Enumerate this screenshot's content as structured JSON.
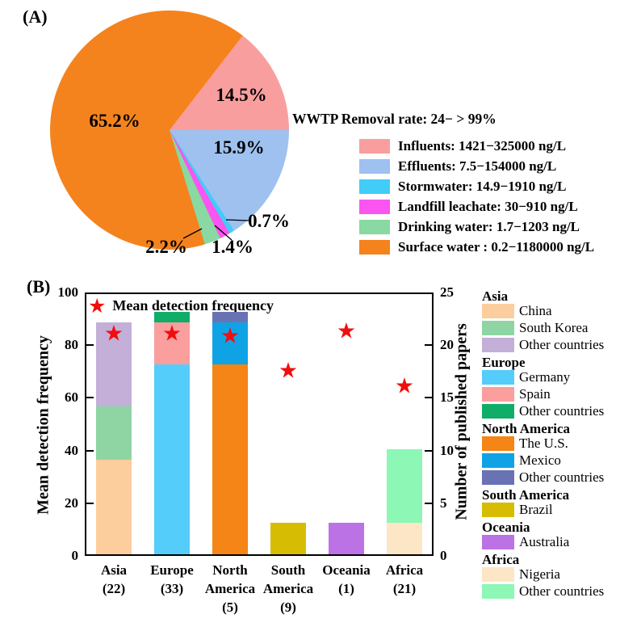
{
  "figure": {
    "panel_a_label": "(A)",
    "panel_b_label": "(B)",
    "background": "#FFFFFF"
  },
  "chart_data": [
    {
      "type": "pie",
      "panel": "A",
      "annotation": "WWTP Removal rate: 24− > 99%",
      "legend_position": "right",
      "start_angle": "pie starts at east, drawn clockwise",
      "draw_order": [
        "Effluents",
        "Stormwater",
        "Landfill leachate",
        "Drinking water",
        "Surface water",
        "Influents"
      ],
      "slices": [
        {
          "name": "Influents",
          "pct": 14.5,
          "pct_label": "14.5%",
          "legend": "Influents: 1421−325000 ng/L",
          "color": "#F99E9E"
        },
        {
          "name": "Effluents",
          "pct": 15.9,
          "pct_label": "15.9%",
          "legend": "Effluents: 7.5−154000 ng/L",
          "color": "#9EC1EF"
        },
        {
          "name": "Stormwater",
          "pct": 0.7,
          "pct_label": "0.7%",
          "legend": "Stormwater: 14.9−1910 ng/L",
          "color": "#41CDF7"
        },
        {
          "name": "Landfill leachate",
          "pct": 1.4,
          "pct_label": "1.4%",
          "legend": "Landfill leachate: 30−910 ng/L",
          "color": "#FA55F0"
        },
        {
          "name": "Drinking water",
          "pct": 2.2,
          "pct_label": "2.2%",
          "legend": "Drinking water: 1.7−1203 ng/L",
          "color": "#8AD8A2"
        },
        {
          "name": "Surface water",
          "pct": 65.2,
          "pct_label": "65.2%",
          "legend": "Surface water : 0.2−1180000 ng/L",
          "color": "#F5831D"
        }
      ]
    },
    {
      "type": "bar",
      "panel": "B",
      "stacked": true,
      "grid": false,
      "marker_legend": "Mean detection frequency",
      "marker": {
        "shape": "star",
        "color": "#F10E0E"
      },
      "left_axis": {
        "label": "Mean detection frequency",
        "ticks": [
          0,
          20,
          40,
          60,
          80,
          100
        ],
        "range": [
          0,
          100
        ]
      },
      "right_axis": {
        "label": "Number of published papers",
        "ticks": [
          0,
          5,
          10,
          15,
          20,
          25
        ],
        "range": [
          0,
          25
        ]
      },
      "categories": [
        "Asia",
        "Europe",
        "North America",
        "South America",
        "Oceania",
        "Africa"
      ],
      "x_tick_labels": [
        "Asia\n(22)",
        "Europe\n(33)",
        "North\nAmerica\n(5)",
        "South\nAmerica\n(9)",
        "Oceania\n(1)",
        "Africa\n(21)"
      ],
      "mean_detection_frequency": [
        84,
        84,
        83,
        70,
        85,
        64
      ],
      "bars": [
        {
          "continent": "Asia",
          "segments": [
            {
              "country": "China",
              "papers": 9,
              "color": "#FCCD9D"
            },
            {
              "country": "South Korea",
              "papers": 5,
              "color": "#8FD5A3"
            },
            {
              "country": "Other countries",
              "papers": 8,
              "color": "#C4AFD9"
            }
          ]
        },
        {
          "continent": "Europe",
          "segments": [
            {
              "country": "Germany",
              "papers": 18,
              "color": "#55CDFA"
            },
            {
              "country": "Spain",
              "papers": 4,
              "color": "#FA9E9E"
            },
            {
              "country": "Other countries",
              "papers": 1,
              "color": "#10AD68"
            }
          ]
        },
        {
          "continent": "North America",
          "segments": [
            {
              "country": "The U.S.",
              "papers": 18,
              "color": "#F58516"
            },
            {
              "country": "Mexico",
              "papers": 4,
              "color": "#0FA3E6"
            },
            {
              "country": "Other countries",
              "papers": 1,
              "color": "#6973B4"
            }
          ]
        },
        {
          "continent": "South America",
          "segments": [
            {
              "country": "Brazil",
              "papers": 3,
              "color": "#D7BC04"
            }
          ]
        },
        {
          "continent": "Oceania",
          "segments": [
            {
              "country": "Australia",
              "papers": 3,
              "color": "#BB72E5"
            }
          ]
        },
        {
          "continent": "Africa",
          "segments": [
            {
              "country": "Nigeria",
              "papers": 3,
              "color": "#FDE6C6"
            },
            {
              "country": "Other countries",
              "papers": 7,
              "color": "#8DF7B5"
            }
          ]
        }
      ]
    }
  ]
}
